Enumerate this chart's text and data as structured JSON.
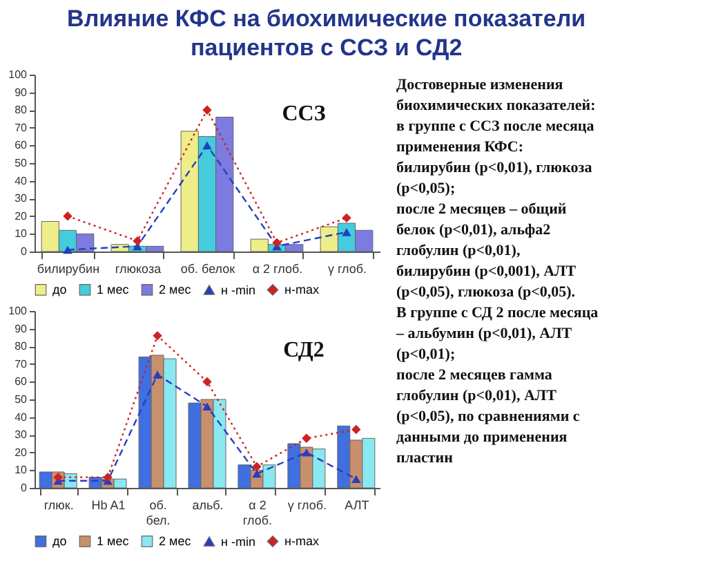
{
  "chart_data": [
    {
      "type": "other",
      "title": "Влияние КФС на биохимические показатели\nпациентов с ССЗ и СД2",
      "annotations": [
        "Достоверные изменения",
        "биохимических показателей:",
        "в группе с ССЗ после месяца",
        "применения КФС:",
        "билирубин (p<0,01), глюкоза",
        "(p<0,05);",
        "после 2 месяцев – общий",
        "белок (p<0,01), альфа2",
        "глобулин (p<0,01),",
        "билирубин (p<0,001), АЛТ",
        "(p<0,05), глюкоза (p<0,05).",
        "В группе с СД 2 после месяца",
        "– альбумин (p<0,01), АЛТ",
        "(p<0,01);",
        "после 2 месяцев гамма",
        "глобулин (p<0,01), АЛТ",
        "(p<0,05), по сравнениями с",
        "данными до применения",
        "пластин"
      ]
    },
    {
      "type": "bar",
      "title": "ССЗ",
      "categories": [
        "билирубин",
        "глюкоза",
        "об. белок",
        "α 2 глоб.",
        "γ глоб."
      ],
      "series": [
        {
          "name": "до",
          "color": "#eeee88",
          "values": [
            17,
            4,
            68,
            7,
            14
          ]
        },
        {
          "name": "1 мес",
          "color": "#44ccdd",
          "values": [
            12,
            3,
            65,
            4,
            16
          ]
        },
        {
          "name": "2 мес",
          "color": "#7b7be0",
          "values": [
            10,
            3,
            76,
            4,
            12
          ]
        },
        {
          "name": "н -min",
          "type": "line",
          "color": "#2040c0",
          "marker": "triangle",
          "line_style": "dashed",
          "values": [
            1,
            3,
            60,
            3,
            11
          ]
        },
        {
          "name": "н-max",
          "type": "line",
          "color": "#cc2222",
          "marker": "diamond",
          "line_style": "dotted",
          "values": [
            20,
            6,
            80,
            5,
            19
          ]
        }
      ],
      "ylim": [
        0,
        100
      ],
      "yticks": [
        0,
        10,
        20,
        30,
        40,
        50,
        60,
        70,
        80,
        90,
        100
      ],
      "legend": "bottom"
    },
    {
      "type": "bar",
      "title": "СД2",
      "categories": [
        "глюк.",
        "Hb A1",
        "об.\nбел.",
        "альб.",
        "α 2\nглоб.",
        "γ глоб.",
        "АЛТ"
      ],
      "series": [
        {
          "name": "до",
          "color": "#3f6fe0",
          "values": [
            9,
            6,
            74,
            48,
            13,
            25,
            35
          ]
        },
        {
          "name": "1 мес",
          "color": "#c8906c",
          "values": [
            9,
            5,
            75,
            50,
            10,
            23,
            27
          ]
        },
        {
          "name": "2 мес",
          "color": "#8ae8f0",
          "values": [
            8,
            5,
            73,
            50,
            13,
            22,
            28
          ]
        },
        {
          "name": "н -min",
          "type": "line",
          "color": "#2a3cc0",
          "marker": "triangle",
          "line_style": "dashed",
          "values": [
            4,
            4,
            64,
            46,
            8,
            20,
            5
          ]
        },
        {
          "name": "н-max",
          "type": "line",
          "color": "#cc2222",
          "marker": "diamond",
          "line_style": "dotted",
          "values": [
            6,
            6,
            86,
            60,
            12,
            28,
            33
          ]
        }
      ],
      "ylim": [
        0,
        100
      ],
      "yticks": [
        0,
        10,
        20,
        30,
        40,
        50,
        60,
        70,
        80,
        90,
        100
      ],
      "legend": "bottom"
    }
  ]
}
